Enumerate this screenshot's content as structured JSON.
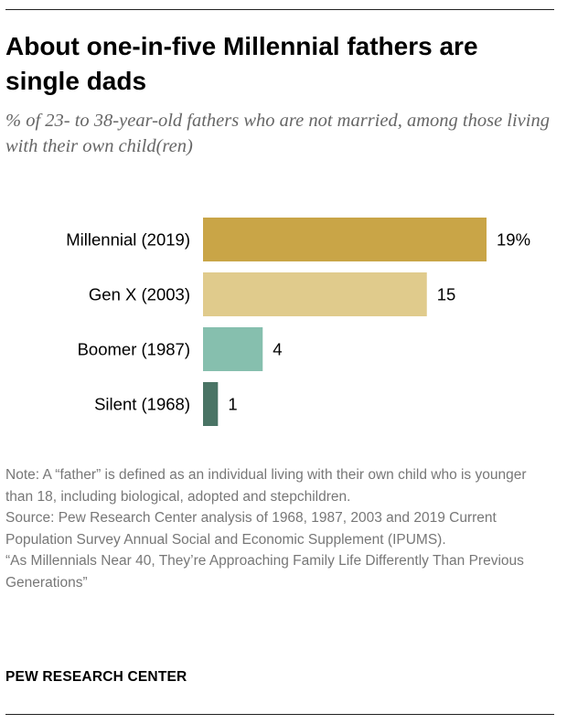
{
  "header": {
    "title": "About one-in-five Millennial fathers are single dads",
    "subtitle": "% of 23- to 38-year-old fathers who are not married, among those living with their own child(ren)"
  },
  "chart_data": {
    "type": "bar",
    "orientation": "horizontal",
    "title": "About one-in-five Millennial fathers are single dads",
    "subtitle": "% of 23- to 38-year-old fathers who are not married, among those living with their own child(ren)",
    "categories": [
      "Millennial (2019)",
      "Gen X (2003)",
      "Boomer (1987)",
      "Silent (1968)"
    ],
    "values": [
      19,
      15,
      4,
      1
    ],
    "value_labels": [
      "19%",
      "15",
      "4",
      "1"
    ],
    "colors": [
      "#c9a547",
      "#e0cb8c",
      "#86bfae",
      "#4a7465"
    ],
    "xlim": [
      0,
      19
    ],
    "grid": false,
    "legend": "none"
  },
  "footer": {
    "note": "Note: A “father” is defined as an individual living with their own child who is younger than 18, including biological, adopted and stepchildren.",
    "source": "Source: Pew Research Center analysis of 1968, 1987, 2003 and 2019 Current Population Survey Annual Social and Economic Supplement (IPUMS).",
    "report": "“As Millennials Near 40, They’re Approaching Family Life Differently Than Previous Generations”",
    "brand": "PEW RESEARCH CENTER"
  }
}
